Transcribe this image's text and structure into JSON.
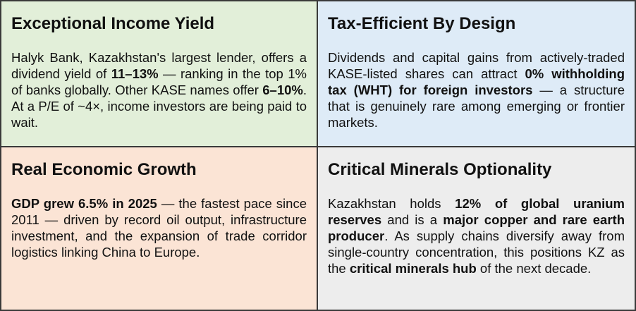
{
  "cells": [
    {
      "title": "Exceptional Income Yield",
      "background": "#e2efd9",
      "body": [
        {
          "text": "Halyk Bank, Kazakhstan's largest lender, offers a dividend yield of ",
          "bold": false
        },
        {
          "text": "11–13%",
          "bold": true
        },
        {
          "text": " — ranking in the top 1% of banks globally. Other KASE names offer ",
          "bold": false
        },
        {
          "text": "6–10%",
          "bold": true
        },
        {
          "text": ". At a P/E of ~4×, income investors are being paid to wait.",
          "bold": false
        }
      ]
    },
    {
      "title": "Tax-Efficient By Design",
      "background": "#deebf7",
      "body": [
        {
          "text": "Dividends and capital gains from actively-traded KASE-listed shares can attract ",
          "bold": false
        },
        {
          "text": "0% withholding tax (WHT) for foreign investors",
          "bold": true
        },
        {
          "text": " — a structure that is genuinely rare among emerging or frontier markets.",
          "bold": false
        }
      ]
    },
    {
      "title": "Real Economic Growth",
      "background": "#fbe4d5",
      "body": [
        {
          "text": "GDP grew 6.5% in 2025",
          "bold": true
        },
        {
          "text": " — the fastest pace since 2011 — driven by record oil output, infrastructure investment, and the expansion of trade corridor logistics linking China to Europe.",
          "bold": false
        }
      ]
    },
    {
      "title": "Critical Minerals Optionality",
      "background": "#ededed",
      "body": [
        {
          "text": "Kazakhstan holds ",
          "bold": false
        },
        {
          "text": "12% of global uranium reserves",
          "bold": true
        },
        {
          "text": " and is a ",
          "bold": false
        },
        {
          "text": "major copper and rare earth producer",
          "bold": true
        },
        {
          "text": ". As supply chains diversify away from single-country concentration, this positions KZ as the ",
          "bold": false
        },
        {
          "text": "critical minerals hub",
          "bold": true
        },
        {
          "text": " of the next decade.",
          "bold": false
        }
      ]
    }
  ]
}
